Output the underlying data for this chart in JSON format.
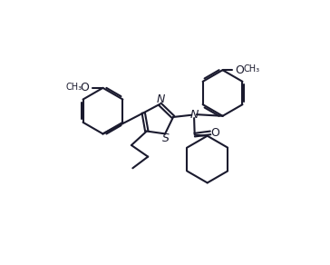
{
  "bg_color": "#ffffff",
  "line_color": "#1a1a2e",
  "line_width": 1.5,
  "font_size": 8,
  "figsize": [
    3.64,
    2.92
  ],
  "dpi": 100,
  "xlim": [
    0,
    10
  ],
  "ylim": [
    0,
    8
  ]
}
